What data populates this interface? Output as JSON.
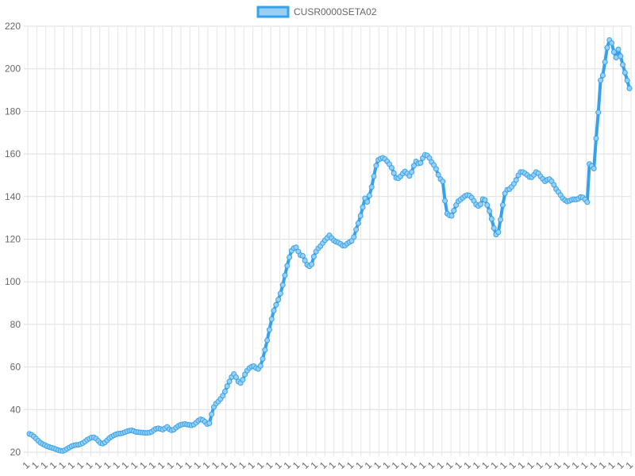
{
  "chart_data": {
    "type": "line",
    "legend_position": "top",
    "grid": true,
    "ylim": [
      20,
      220
    ],
    "y_ticks": [
      20,
      40,
      60,
      80,
      100,
      120,
      140,
      160,
      180,
      200,
      220
    ],
    "x_tick_label": "1",
    "x_tick_count": 68,
    "series": [
      {
        "name": "CUSR0000SETA02",
        "color": "#36a2eb",
        "fill": "#9ad0f5",
        "values": [
          28.6,
          28.2,
          27.4,
          26.4,
          25.4,
          24.4,
          23.8,
          23.3,
          22.8,
          22.4,
          22.1,
          21.8,
          21.4,
          21,
          20.7,
          20.6,
          21,
          21.6,
          22.2,
          22.8,
          23.2,
          23.4,
          23.5,
          23.8,
          24.3,
          25,
          25.8,
          26.4,
          26.9,
          27,
          26.4,
          25.3,
          24.3,
          24,
          24.6,
          25.6,
          26.6,
          27.3,
          27.9,
          28.4,
          28.7,
          28.8,
          29,
          29.4,
          29.8,
          30.1,
          30.3,
          29.9,
          29.5,
          29.4,
          29.3,
          29.2,
          29.1,
          29.1,
          29.2,
          29.6,
          30.4,
          31,
          31.2,
          30.9,
          30.6,
          31.2,
          31.9,
          30.8,
          30.3,
          30.6,
          31.5,
          32.3,
          32.8,
          33.1,
          33.2,
          33,
          32.8,
          32.6,
          33,
          33.8,
          34.8,
          35.4,
          35.1,
          34.3,
          33.2,
          33.6,
          37.8,
          41.2,
          42.8,
          43.8,
          45,
          46.5,
          48.5,
          51,
          53.2,
          55.3,
          56.7,
          55.2,
          53.2,
          52.5,
          54,
          56.5,
          58.3,
          59.5,
          60.2,
          60.4,
          59.5,
          59.1,
          60.5,
          63.8,
          68,
          72.5,
          77.5,
          82.5,
          86.5,
          89.2,
          91.6,
          94.5,
          98.5,
          103,
          107.5,
          111.5,
          114.6,
          115.8,
          116.2,
          114.2,
          112.5,
          112.2,
          110,
          108,
          107.3,
          108.2,
          111.8,
          114.2,
          115.7,
          116.8,
          118.2,
          119.5,
          120.6,
          121.8,
          120.5,
          119.4,
          118.8,
          118.4,
          117.8,
          117,
          117,
          117.9,
          118.6,
          119.2,
          121,
          124.5,
          127.5,
          131,
          135,
          139.2,
          137.5,
          140.5,
          144.5,
          149.5,
          154.5,
          157.2,
          157.8,
          158.2,
          157.6,
          156.5,
          155.2,
          153.5,
          151,
          148.8,
          148.6,
          149.5,
          150.8,
          151.8,
          150.8,
          149.7,
          151.5,
          154.5,
          156.5,
          155.5,
          155.8,
          158.1,
          159.6,
          159.3,
          158.1,
          156.2,
          154.8,
          153,
          150.2,
          148.2,
          147.1,
          138,
          132,
          131.2,
          131,
          133.4,
          136,
          137.8,
          138.6,
          139.4,
          140.3,
          140.7,
          140.5,
          139.5,
          138,
          136.3,
          135.6,
          136.4,
          138.8,
          138.4,
          136,
          133.2,
          129.5,
          125.2,
          122.2,
          123.3,
          129.2,
          136,
          141.5,
          143.2,
          143.5,
          144.6,
          146,
          147.8,
          150,
          151.5,
          151.5,
          150.9,
          150.1,
          149.2,
          149.1,
          150.2,
          151.5,
          150.9,
          149.5,
          148.3,
          147.2,
          147.9,
          148.2,
          147.2,
          145.5,
          143.5,
          142.2,
          140.7,
          139.2,
          138.3,
          137.7,
          138,
          138.5,
          138.7,
          138.6,
          139,
          139.8,
          139.6,
          138.7,
          137.4,
          155.3,
          154.4,
          153.2,
          167.3,
          179.5,
          194.6,
          196.9,
          203.2,
          209.9,
          213.5,
          212.1,
          207.9,
          205.3,
          209.1,
          205.9,
          201.9,
          198.2,
          194.5,
          190.8
        ]
      }
    ]
  }
}
